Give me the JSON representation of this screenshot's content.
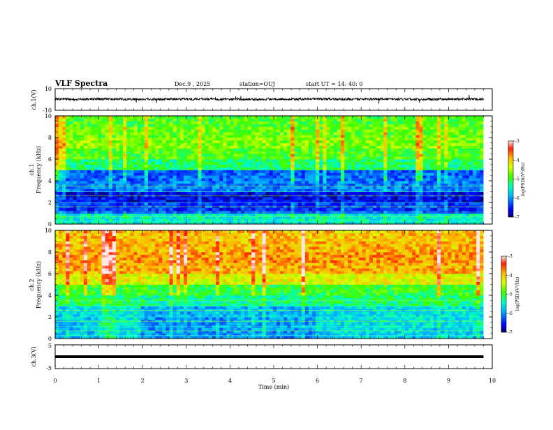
{
  "header": {
    "title": "VLF Spectra",
    "date": "Dec.9  , 2025",
    "station": "station=OUJ",
    "start_ut": "start  UT =   14: 40: 0"
  },
  "chart_data": [
    {
      "type": "line",
      "panel": "ch1-waveform",
      "ylabel": "ch.1(V)",
      "ylim": [
        -10,
        10
      ],
      "ytick_labels": [
        "10",
        "-10"
      ],
      "xlim": [
        0,
        10
      ],
      "description_of_series": "noisy waveform centered near 0 V",
      "x": [
        0.0,
        0.5,
        1.0,
        1.5,
        2.0,
        2.5,
        3.0,
        3.5,
        4.0,
        4.5,
        5.0,
        5.5,
        6.0,
        6.5,
        7.0,
        7.5,
        8.0,
        8.5,
        9.0,
        9.5,
        9.8
      ],
      "y": [
        0.5,
        0.2,
        0.4,
        0.3,
        0.2,
        0.4,
        0.3,
        0.5,
        0.3,
        0.2,
        0.4,
        0.3,
        0.4,
        0.2,
        0.3,
        0.4,
        0.3,
        0.2,
        0.4,
        0.3,
        0.3
      ]
    },
    {
      "type": "heatmap",
      "panel": "ch1-spectrogram",
      "ylabel_line1": "ch.1",
      "ylabel_line2": "Frequency (kHz)",
      "ylim": [
        0,
        10
      ],
      "yticks": [
        0,
        2,
        4,
        6,
        8,
        10
      ],
      "xlim": [
        0,
        10
      ],
      "data_extent_min": 9.8,
      "colorbar": {
        "label": "log(PSD)(V²/Hz)",
        "range": [
          -7,
          -3
        ],
        "ticks": [
          -3,
          -4,
          -5,
          -6,
          -7
        ]
      },
      "time_rows_min": [
        0,
        1,
        2,
        3,
        4,
        5,
        6,
        7,
        8,
        9
      ],
      "freq_cols_khz": [
        0.5,
        1.5,
        2.5,
        3.5,
        4.5,
        5.5,
        6.5,
        7.5,
        8.5,
        9.5
      ],
      "z": [
        [
          -5.5,
          -6.4,
          -6.6,
          -6.1,
          -6.2,
          -5.2,
          -4.9,
          -4.6,
          -4.8,
          -4.9
        ],
        [
          -5.5,
          -6.4,
          -6.6,
          -6.1,
          -6.2,
          -5.2,
          -4.9,
          -4.7,
          -4.8,
          -4.9
        ],
        [
          -5.5,
          -6.4,
          -6.6,
          -6.1,
          -6.2,
          -5.2,
          -4.9,
          -4.7,
          -4.8,
          -4.9
        ],
        [
          -5.5,
          -6.4,
          -6.6,
          -6.1,
          -6.2,
          -5.2,
          -4.9,
          -4.7,
          -4.8,
          -4.9
        ],
        [
          -5.5,
          -6.4,
          -6.6,
          -6.1,
          -6.2,
          -5.2,
          -4.9,
          -4.7,
          -4.8,
          -4.9
        ],
        [
          -5.5,
          -6.4,
          -6.6,
          -6.1,
          -6.2,
          -5.2,
          -4.9,
          -4.7,
          -4.8,
          -4.9
        ],
        [
          -5.5,
          -6.4,
          -6.6,
          -6.1,
          -6.2,
          -5.2,
          -4.9,
          -4.7,
          -4.8,
          -4.9
        ],
        [
          -5.5,
          -6.4,
          -6.6,
          -6.1,
          -6.2,
          -5.2,
          -4.9,
          -4.7,
          -4.8,
          -4.9
        ],
        [
          -5.5,
          -6.4,
          -6.6,
          -6.1,
          -6.2,
          -5.2,
          -4.9,
          -4.7,
          -4.8,
          -4.9
        ],
        [
          -5.5,
          -6.4,
          -6.6,
          -6.1,
          -6.2,
          -5.2,
          -4.9,
          -4.7,
          -4.8,
          -4.9
        ]
      ]
    },
    {
      "type": "heatmap",
      "panel": "ch2-spectrogram",
      "ylabel_line1": "ch.2",
      "ylabel_line2": "Frequency (kHz)",
      "ylim": [
        0,
        10
      ],
      "yticks": [
        0,
        2,
        4,
        6,
        8,
        10
      ],
      "xlim": [
        0,
        10
      ],
      "data_extent_min": 9.8,
      "colorbar": {
        "label": "log(PSD)(V²/Hz)",
        "range": [
          -7,
          -3
        ],
        "ticks": [
          -3,
          -4,
          -5,
          -6,
          -7
        ]
      },
      "time_rows_min": [
        0,
        1,
        2,
        3,
        4,
        5,
        6,
        7,
        8,
        9
      ],
      "freq_cols_khz": [
        0.5,
        1.5,
        2.5,
        3.5,
        4.5,
        5.5,
        6.5,
        7.5,
        8.5,
        9.5
      ],
      "z": [
        [
          -5.8,
          -5.8,
          -5.7,
          -5.2,
          -5.0,
          -4.3,
          -3.9,
          -3.8,
          -3.9,
          -4.0
        ],
        [
          -5.6,
          -5.5,
          -5.5,
          -5.2,
          -5.0,
          -4.3,
          -3.9,
          -3.8,
          -3.9,
          -4.0
        ],
        [
          -6.0,
          -6.0,
          -5.9,
          -5.3,
          -5.0,
          -4.3,
          -3.9,
          -3.8,
          -3.9,
          -4.0
        ],
        [
          -6.0,
          -6.0,
          -5.9,
          -5.3,
          -5.0,
          -4.3,
          -3.9,
          -3.8,
          -3.9,
          -4.0
        ],
        [
          -5.9,
          -5.9,
          -5.8,
          -5.3,
          -5.0,
          -4.3,
          -3.9,
          -3.8,
          -3.9,
          -4.0
        ],
        [
          -6.0,
          -6.0,
          -5.9,
          -5.3,
          -5.0,
          -4.3,
          -3.9,
          -3.8,
          -3.9,
          -4.0
        ],
        [
          -5.7,
          -5.6,
          -5.6,
          -5.2,
          -5.0,
          -4.3,
          -3.9,
          -3.8,
          -3.9,
          -4.0
        ],
        [
          -5.7,
          -5.6,
          -5.6,
          -5.2,
          -5.0,
          -4.3,
          -3.9,
          -3.8,
          -3.9,
          -4.0
        ],
        [
          -5.7,
          -5.6,
          -5.6,
          -5.2,
          -5.0,
          -4.3,
          -3.9,
          -3.8,
          -3.9,
          -4.0
        ],
        [
          -5.7,
          -5.6,
          -5.6,
          -5.2,
          -5.0,
          -4.3,
          -3.9,
          -3.8,
          -3.9,
          -4.0
        ]
      ]
    },
    {
      "type": "line",
      "panel": "ch3-waveform",
      "ylabel": "ch.3(V)",
      "ylim": [
        -5,
        5
      ],
      "ytick_labels": [
        "5",
        "-5"
      ],
      "xlim": [
        0,
        10
      ],
      "x": [
        0,
        9.8
      ],
      "y": [
        0,
        0
      ]
    }
  ],
  "xaxis": {
    "label": "Time  (min)",
    "ticks": [
      "0",
      "1",
      "2",
      "3",
      "4",
      "5",
      "6",
      "7",
      "8",
      "9",
      "10"
    ]
  },
  "freq_ticks": [
    "0",
    "2",
    "4",
    "6",
    "8",
    "10"
  ],
  "colorbar_ticks": [
    "-3",
    "-4",
    "-5",
    "-6",
    "-7"
  ],
  "colorbar_label": "log(PSD)(V²/Hz)"
}
